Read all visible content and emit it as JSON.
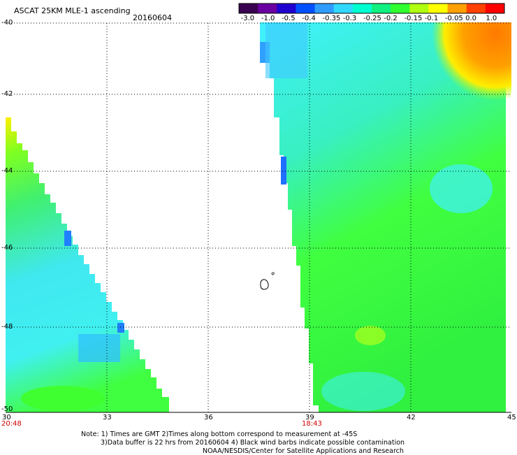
{
  "header": {
    "title": "ASCAT 25KM MLE-1 ascending",
    "date": "20160604"
  },
  "colorbar": {
    "labels": [
      "-3.0",
      "-1.0",
      "-0.5",
      "-0.4",
      "-0.35",
      "-0.3",
      "-0.25",
      "-0.2",
      "-0.15",
      "-0.1",
      "-0.05",
      "0.0",
      "1.0"
    ],
    "colors": [
      "#3a0050",
      "#6a00a0",
      "#2000d0",
      "#0050ff",
      "#2e9cff",
      "#30d8ff",
      "#00ffd0",
      "#10f080",
      "#30ff30",
      "#b0ff10",
      "#ffff00",
      "#ffa000",
      "#ff4000",
      "#ff0000"
    ]
  },
  "axes": {
    "x_ticks": [
      "30",
      "33",
      "36",
      "39",
      "42",
      "45"
    ],
    "y_ticks": [
      "-40",
      "-42",
      "-44",
      "-46",
      "-48",
      "-50"
    ]
  },
  "swaths": [
    {
      "time": "20:48"
    },
    {
      "time": "18:43"
    }
  ],
  "notes": {
    "line1": "Note: 1) Times are GMT 2)Times along bottom correspond to measurement at -45S",
    "line2": "3)Data buffer is 22 hrs from 20160604 4) Black wind barbs indicate possible contamination",
    "line3": "NOAA/NESDIS/Center for Satellite Applications and Research"
  }
}
